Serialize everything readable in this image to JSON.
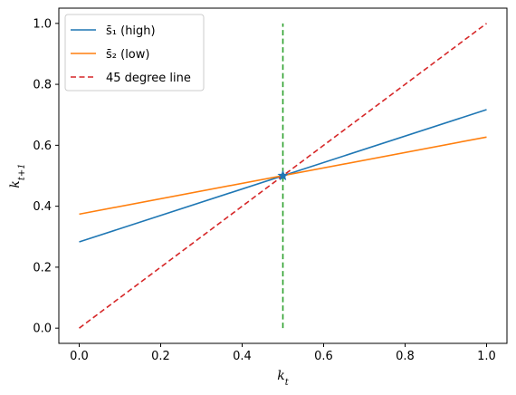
{
  "chart_data": {
    "type": "line",
    "xlabel": "k_t",
    "ylabel": "k_{t+1}",
    "xlim": [
      -0.05,
      1.05
    ],
    "ylim": [
      -0.05,
      1.05
    ],
    "x_ticks": [
      "0.0",
      "0.2",
      "0.4",
      "0.6",
      "0.8",
      "1.0"
    ],
    "y_ticks": [
      "0.0",
      "0.2",
      "0.4",
      "0.6",
      "0.8",
      "1.0"
    ],
    "grid": false,
    "legend_position": "top-left",
    "series": [
      {
        "name": "s̄₁ (high)",
        "style": "solid",
        "color": "#1f77b4",
        "x": [
          0,
          1
        ],
        "y": [
          0.283,
          0.717
        ]
      },
      {
        "name": "s̄₂ (low)",
        "style": "solid",
        "color": "#ff7f0e",
        "x": [
          0,
          1
        ],
        "y": [
          0.374,
          0.627
        ]
      },
      {
        "name": "45 degree line",
        "style": "dashed",
        "color": "#d62728",
        "x": [
          0,
          1
        ],
        "y": [
          0,
          1
        ]
      }
    ],
    "vertical_line": {
      "x": 0.5,
      "y_range": [
        0,
        1
      ],
      "style": "dashed",
      "color": "#2ca02c"
    },
    "marker": {
      "x": 0.5,
      "y": 0.5,
      "symbol": "star",
      "color": "#1f77b4"
    }
  }
}
